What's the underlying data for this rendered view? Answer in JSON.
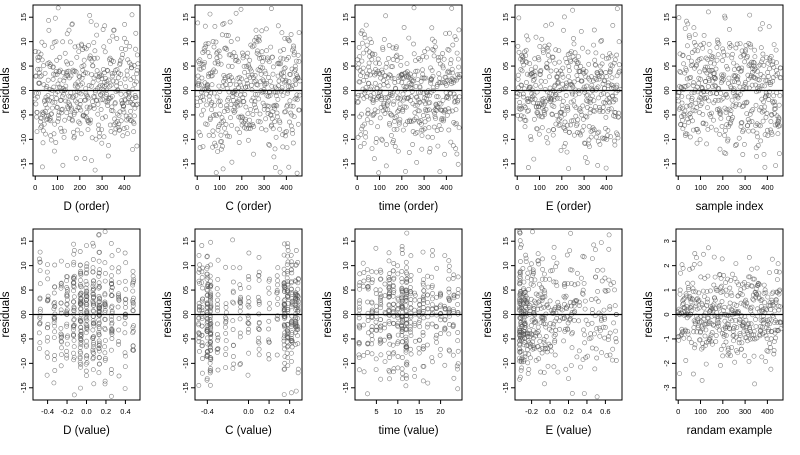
{
  "chart_data": [
    {
      "type": "scatter",
      "xlabel": "D (order)",
      "ylabel": "residuals",
      "xlim": [
        -10,
        470
      ],
      "ylim": [
        -1.75,
        1.75
      ],
      "xticks": [
        0,
        100,
        200,
        300,
        400
      ],
      "xtick_labels": [
        "0",
        "100",
        "200",
        "300",
        "400"
      ],
      "yticks": [
        -1.5,
        -1.0,
        -0.5,
        0.0,
        0.5,
        1.0,
        1.5
      ],
      "ytick_labels": [
        "-15",
        "-10",
        "-05",
        "00",
        "05",
        "10",
        "15"
      ],
      "reference_line_y": 0,
      "points": {
        "n": 460,
        "x_range": [
          0,
          460
        ],
        "distribution": "uniform_index",
        "seed": 11,
        "y_sd": 0.62
      }
    },
    {
      "type": "scatter",
      "xlabel": "C (order)",
      "ylabel": "residuals",
      "xlim": [
        -10,
        470
      ],
      "ylim": [
        -1.75,
        1.75
      ],
      "xticks": [
        0,
        100,
        200,
        300,
        400
      ],
      "xtick_labels": [
        "0",
        "100",
        "200",
        "300",
        "400"
      ],
      "yticks": [
        -1.5,
        -1.0,
        -0.5,
        0.0,
        0.5,
        1.0,
        1.5
      ],
      "ytick_labels": [
        "-15",
        "-10",
        "-05",
        "00",
        "05",
        "10",
        "15"
      ],
      "reference_line_y": 0,
      "points": {
        "n": 460,
        "x_range": [
          0,
          460
        ],
        "distribution": "uniform_index",
        "seed": 22,
        "y_sd": 0.62
      }
    },
    {
      "type": "scatter",
      "xlabel": "time (order)",
      "ylabel": "residuals",
      "xlim": [
        -10,
        470
      ],
      "ylim": [
        -1.75,
        1.75
      ],
      "xticks": [
        0,
        100,
        200,
        300,
        400
      ],
      "xtick_labels": [
        "0",
        "100",
        "200",
        "300",
        "400"
      ],
      "yticks": [
        -1.5,
        -1.0,
        -0.5,
        0.0,
        0.5,
        1.0,
        1.5
      ],
      "ytick_labels": [
        "-15",
        "-10",
        "-05",
        "00",
        "05",
        "10",
        "15"
      ],
      "reference_line_y": 0,
      "points": {
        "n": 460,
        "x_range": [
          0,
          460
        ],
        "distribution": "uniform_index",
        "seed": 33,
        "y_sd": 0.62
      }
    },
    {
      "type": "scatter",
      "xlabel": "E (order)",
      "ylabel": "residuals",
      "xlim": [
        -10,
        470
      ],
      "ylim": [
        -1.75,
        1.75
      ],
      "xticks": [
        0,
        100,
        200,
        300,
        400
      ],
      "xtick_labels": [
        "0",
        "100",
        "200",
        "300",
        "400"
      ],
      "yticks": [
        -1.5,
        -1.0,
        -0.5,
        0.0,
        0.5,
        1.0,
        1.5
      ],
      "ytick_labels": [
        "-15",
        "-10",
        "-05",
        "00",
        "05",
        "10",
        "15"
      ],
      "reference_line_y": 0,
      "points": {
        "n": 460,
        "x_range": [
          0,
          460
        ],
        "distribution": "uniform_index",
        "seed": 44,
        "y_sd": 0.62
      }
    },
    {
      "type": "scatter",
      "xlabel": "sample index",
      "ylabel": "residuals",
      "xlim": [
        -10,
        470
      ],
      "ylim": [
        -1.75,
        1.75
      ],
      "xticks": [
        0,
        100,
        200,
        300,
        400
      ],
      "xtick_labels": [
        "0",
        "100",
        "200",
        "300",
        "400"
      ],
      "yticks": [
        -1.5,
        -1.0,
        -0.5,
        0.0,
        0.5,
        1.0,
        1.5
      ],
      "ytick_labels": [
        "-15",
        "-10",
        "-05",
        "00",
        "05",
        "10",
        "15"
      ],
      "reference_line_y": 0,
      "points": {
        "n": 460,
        "x_range": [
          0,
          460
        ],
        "distribution": "uniform_index",
        "seed": 55,
        "y_sd": 0.62
      }
    },
    {
      "type": "scatter",
      "xlabel": "D (value)",
      "ylabel": "residuals",
      "xlim": [
        -0.55,
        0.55
      ],
      "ylim": [
        -1.75,
        1.75
      ],
      "xticks": [
        -0.4,
        -0.2,
        0.0,
        0.2,
        0.4
      ],
      "xtick_labels": [
        "-0.4",
        "-0.2",
        "0.0",
        "0.2",
        "0.4"
      ],
      "yticks": [
        -1.5,
        -1.0,
        -0.5,
        0.0,
        0.5,
        1.0,
        1.5
      ],
      "ytick_labels": [
        "-15",
        "-10",
        "-05",
        "00",
        "05",
        "10",
        "15"
      ],
      "reference_line_y": 0,
      "points": {
        "n": 460,
        "distribution": "columns",
        "seed": 66,
        "y_sd": 0.62,
        "x_columns": [
          -0.48,
          -0.4,
          -0.33,
          -0.26,
          -0.2,
          -0.13,
          -0.06,
          0.0,
          0.07,
          0.13,
          0.19,
          0.26,
          0.33,
          0.4,
          0.48
        ],
        "column_weights": [
          1,
          1,
          1,
          1,
          2,
          2,
          2,
          2,
          3,
          3,
          2,
          2,
          1,
          1,
          1
        ]
      }
    },
    {
      "type": "scatter",
      "xlabel": "C (value)",
      "ylabel": "residuals",
      "xlim": [
        -0.52,
        0.52
      ],
      "ylim": [
        -1.75,
        1.75
      ],
      "xticks": [
        -0.4,
        0.0,
        0.2,
        0.4
      ],
      "xtick_labels": [
        "-0.4",
        "0.0",
        "0.2",
        "0.4"
      ],
      "yticks": [
        -1.5,
        -1.0,
        -0.5,
        0.0,
        0.5,
        1.0,
        1.5
      ],
      "ytick_labels": [
        "-15",
        "-10",
        "-05",
        "00",
        "05",
        "10",
        "15"
      ],
      "reference_line_y": 0,
      "points": {
        "n": 460,
        "distribution": "columns",
        "seed": 77,
        "y_sd": 0.62,
        "x_columns": [
          -0.48,
          -0.45,
          -0.4,
          -0.37,
          -0.3,
          -0.22,
          -0.15,
          -0.08,
          0.0,
          0.1,
          0.2,
          0.28,
          0.35,
          0.38,
          0.42,
          0.46,
          0.48
        ],
        "column_weights": [
          2,
          2,
          4,
          4,
          1,
          1,
          1,
          1,
          1,
          1,
          1,
          1,
          3,
          3,
          2,
          2,
          2
        ]
      }
    },
    {
      "type": "scatter",
      "xlabel": "time (value)",
      "ylabel": "residuals",
      "xlim": [
        0,
        25
      ],
      "ylim": [
        -1.75,
        1.75
      ],
      "xticks": [
        5,
        10,
        15,
        20
      ],
      "xtick_labels": [
        "5",
        "10",
        "15",
        "20"
      ],
      "yticks": [
        -1.5,
        -1.0,
        -0.5,
        0.0,
        0.5,
        1.0,
        1.5
      ],
      "ytick_labels": [
        "-15",
        "-10",
        "-05",
        "00",
        "05",
        "10",
        "15"
      ],
      "reference_line_y": 0,
      "points": {
        "n": 460,
        "distribution": "columns",
        "seed": 88,
        "y_sd": 0.62,
        "x_columns": [
          1,
          2,
          3,
          4,
          5,
          6,
          7,
          8,
          9,
          10,
          11,
          12,
          13,
          14,
          15,
          16,
          17,
          18,
          19,
          20,
          21,
          22,
          23,
          24
        ],
        "column_weights": [
          1,
          1,
          1,
          1,
          1,
          1,
          1,
          2,
          1,
          1,
          3,
          3,
          1,
          1,
          1,
          1,
          1,
          1,
          1,
          1,
          1,
          1,
          1,
          1
        ]
      }
    },
    {
      "type": "scatter",
      "xlabel": "E (value)",
      "ylabel": "residuals",
      "xlim": [
        -0.38,
        0.78
      ],
      "ylim": [
        -1.75,
        1.75
      ],
      "xticks": [
        -0.2,
        0.0,
        0.2,
        0.4,
        0.6
      ],
      "xtick_labels": [
        "-0.2",
        "0.0",
        "0.2",
        "0.4",
        "0.6"
      ],
      "yticks": [
        -1.5,
        -1.0,
        -0.5,
        0.0,
        0.5,
        1.0,
        1.5
      ],
      "ytick_labels": [
        "-15",
        "-10",
        "-05",
        "00",
        "05",
        "10",
        "15"
      ],
      "reference_line_y": 0,
      "points": {
        "n": 460,
        "distribution": "skewed",
        "seed": 99,
        "y_sd": 0.62,
        "x_min": -0.33,
        "x_max": 0.72
      }
    },
    {
      "type": "scatter",
      "xlabel": "randam example",
      "ylabel": "residuals",
      "xlim": [
        -10,
        470
      ],
      "ylim": [
        -3.5,
        3.5
      ],
      "xticks": [
        0,
        100,
        200,
        300,
        400
      ],
      "xtick_labels": [
        "0",
        "100",
        "200",
        "300",
        "400"
      ],
      "yticks": [
        -3,
        -2,
        -1,
        0,
        1,
        2,
        3
      ],
      "ytick_labels": [
        "-3",
        "-2",
        "-1",
        "0",
        "1",
        "2",
        "3"
      ],
      "reference_line_y": 0,
      "points": {
        "n": 460,
        "x_range": [
          0,
          460
        ],
        "distribution": "uniform_index",
        "seed": 111,
        "y_sd": 1.0
      }
    }
  ]
}
